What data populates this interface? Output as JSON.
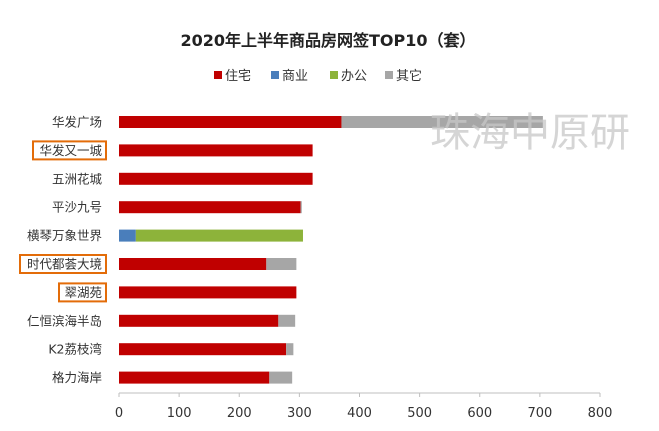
{
  "chart_data": {
    "type": "bar",
    "orientation": "horizontal",
    "stacked": true,
    "title": "2020年上半年商品房网签TOP10（套）",
    "categories": [
      "华发广场",
      "华发又一城",
      "五洲花城",
      "平沙九号",
      "横琴万象世界",
      "时代都荟大境",
      "翠湖苑",
      "仁恒滨海半岛",
      "K2荔枝湾",
      "格力海岸"
    ],
    "highlighted": [
      "华发又一城",
      "时代都荟大境",
      "翠湖苑"
    ],
    "series": [
      {
        "name": "住宅",
        "color": "#c00000",
        "values": [
          370,
          322,
          322,
          302,
          0,
          245,
          295,
          265,
          278,
          250
        ]
      },
      {
        "name": "商业",
        "color": "#4a7ebb",
        "values": [
          0,
          0,
          0,
          0,
          28,
          0,
          0,
          0,
          0,
          0
        ]
      },
      {
        "name": "办公",
        "color": "#8db33a",
        "values": [
          0,
          0,
          0,
          0,
          278,
          0,
          0,
          0,
          0,
          0
        ]
      },
      {
        "name": "其它",
        "color": "#a6a6a6",
        "values": [
          335,
          0,
          0,
          2,
          0,
          50,
          0,
          28,
          12,
          38
        ]
      }
    ],
    "xlim": [
      0,
      800
    ],
    "xticks": [
      0,
      100,
      200,
      300,
      400,
      500,
      600,
      700,
      800
    ],
    "legend_position": "top",
    "grid": false,
    "highlight_color": "#e36c09"
  },
  "watermark": "珠海中原研"
}
